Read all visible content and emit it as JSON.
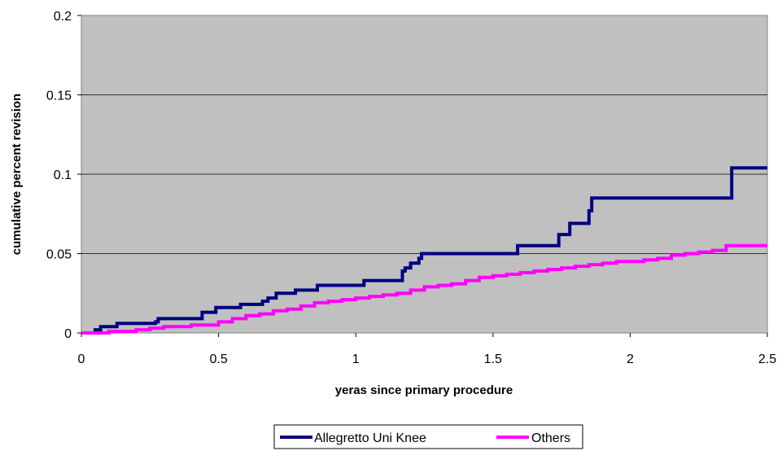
{
  "chart_data": {
    "type": "line",
    "title": "",
    "xlabel": "yeras since primary procedure",
    "ylabel": "cumulative percent revision",
    "xlim": [
      0,
      2.5
    ],
    "ylim": [
      0,
      0.2
    ],
    "x_ticks": [
      "0",
      "0.5",
      "1",
      "1.5",
      "2",
      "2.5"
    ],
    "y_ticks": [
      "0",
      "0.05",
      "0.1",
      "0.15",
      "0.2"
    ],
    "grid": "horizontal",
    "plot_background": "#c0c0c0",
    "legend_position": "bottom",
    "step": true,
    "series": [
      {
        "name": "Allegretto Uni Knee",
        "color": "#000080",
        "x": [
          0,
          0.05,
          0.07,
          0.13,
          0.27,
          0.28,
          0.44,
          0.49,
          0.58,
          0.66,
          0.68,
          0.71,
          0.78,
          0.86,
          1.03,
          1.17,
          1.18,
          1.2,
          1.23,
          1.24,
          1.59,
          1.74,
          1.78,
          1.85,
          1.86,
          2.37,
          2.5
        ],
        "y": [
          0,
          0.002,
          0.004,
          0.006,
          0.007,
          0.009,
          0.013,
          0.016,
          0.018,
          0.02,
          0.022,
          0.025,
          0.027,
          0.03,
          0.033,
          0.039,
          0.041,
          0.044,
          0.047,
          0.05,
          0.055,
          0.062,
          0.069,
          0.077,
          0.085,
          0.104,
          0.104
        ]
      },
      {
        "name": "Others",
        "color": "#ff00ff",
        "x": [
          0,
          0.1,
          0.2,
          0.25,
          0.3,
          0.4,
          0.5,
          0.55,
          0.6,
          0.65,
          0.7,
          0.75,
          0.8,
          0.85,
          0.9,
          0.95,
          1.0,
          1.05,
          1.1,
          1.15,
          1.2,
          1.25,
          1.3,
          1.35,
          1.4,
          1.45,
          1.5,
          1.55,
          1.6,
          1.65,
          1.7,
          1.75,
          1.8,
          1.85,
          1.9,
          1.95,
          2.0,
          2.05,
          2.1,
          2.15,
          2.2,
          2.25,
          2.3,
          2.35,
          2.4,
          2.5
        ],
        "y": [
          0,
          0.001,
          0.002,
          0.003,
          0.004,
          0.005,
          0.007,
          0.009,
          0.011,
          0.012,
          0.014,
          0.015,
          0.017,
          0.019,
          0.02,
          0.021,
          0.022,
          0.023,
          0.024,
          0.025,
          0.027,
          0.029,
          0.03,
          0.031,
          0.033,
          0.035,
          0.036,
          0.037,
          0.038,
          0.039,
          0.04,
          0.041,
          0.042,
          0.043,
          0.044,
          0.045,
          0.045,
          0.046,
          0.047,
          0.049,
          0.05,
          0.051,
          0.052,
          0.055,
          0.055,
          0.055
        ]
      }
    ]
  }
}
